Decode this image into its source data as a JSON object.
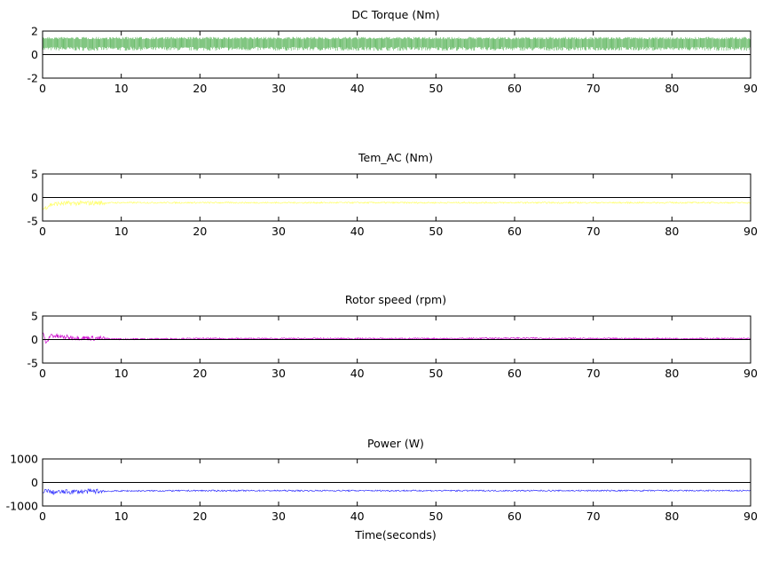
{
  "chart_data": [
    {
      "type": "line",
      "title": "DC Torque (Nm)",
      "xlabel": "",
      "ylabel": "",
      "xlim": [
        0,
        90
      ],
      "ylim": [
        -2,
        2
      ],
      "xticks": [
        "0",
        "10",
        "20",
        "30",
        "40",
        "50",
        "60",
        "70",
        "80",
        "90"
      ],
      "yticks": [
        "2",
        "0",
        "-2"
      ],
      "ytick_values": [
        2,
        0,
        -2
      ],
      "grid": true,
      "series": [
        {
          "color": "#2ca02c",
          "style": "dense-oscillation",
          "x": [
            0,
            10,
            20,
            30,
            40,
            50,
            60,
            70,
            80,
            90
          ],
          "y_min": [
            0.2,
            0.2,
            0.2,
            0.2,
            0.2,
            0.2,
            0.2,
            0.2,
            0.2,
            0.2
          ],
          "y_max": [
            1.5,
            1.5,
            1.5,
            1.5,
            1.5,
            1.5,
            1.5,
            1.5,
            1.5,
            1.5
          ]
        }
      ]
    },
    {
      "type": "line",
      "title": "Tem_AC (Nm)",
      "xlabel": "",
      "ylabel": "",
      "xlim": [
        0,
        90
      ],
      "ylim": [
        -5,
        5
      ],
      "xticks": [
        "0",
        "10",
        "20",
        "30",
        "40",
        "50",
        "60",
        "70",
        "80",
        "90"
      ],
      "yticks": [
        "5",
        "0",
        "-5"
      ],
      "ytick_values": [
        5,
        0,
        -5
      ],
      "grid": true,
      "series": [
        {
          "color": "#ffff66",
          "style": "noisy-line",
          "x": [
            0,
            1,
            2,
            5,
            10,
            20,
            30,
            40,
            50,
            60,
            70,
            80,
            90
          ],
          "y": [
            -2.5,
            -1.5,
            -1.3,
            -1.2,
            -1.1,
            -1.1,
            -1.1,
            -1.1,
            -1.1,
            -1.1,
            -1.1,
            -1.1,
            -1.1
          ]
        }
      ]
    },
    {
      "type": "line",
      "title": "Rotor speed (rpm)",
      "xlabel": "",
      "ylabel": "",
      "xlim": [
        0,
        90
      ],
      "ylim": [
        -5,
        5
      ],
      "xticks": [
        "0",
        "10",
        "20",
        "30",
        "40",
        "50",
        "60",
        "70",
        "80",
        "90"
      ],
      "yticks": [
        "5",
        "0",
        "-5"
      ],
      "ytick_values": [
        5,
        0,
        -5
      ],
      "grid": true,
      "series": [
        {
          "color": "#cc00cc",
          "style": "noisy-line",
          "x": [
            0,
            0.5,
            1,
            2,
            4,
            6,
            8,
            10,
            20,
            30,
            40,
            50,
            60,
            70,
            80,
            90
          ],
          "y": [
            1.5,
            -1.0,
            1.0,
            0.6,
            0.4,
            0.3,
            0.2,
            0.1,
            0.2,
            0.2,
            0.2,
            0.2,
            0.3,
            0.2,
            0.2,
            0.2
          ]
        }
      ]
    },
    {
      "type": "line",
      "title": "Power (W)",
      "xlabel": "Time(seconds)",
      "ylabel": "",
      "xlim": [
        0,
        90
      ],
      "ylim": [
        -1000,
        1000
      ],
      "xticks": [
        "0",
        "10",
        "20",
        "30",
        "40",
        "50",
        "60",
        "70",
        "80",
        "90"
      ],
      "yticks": [
        "1000",
        "0",
        "-1000"
      ],
      "ytick_values": [
        1000,
        0,
        -1000
      ],
      "grid": true,
      "series": [
        {
          "color": "#3333ff",
          "style": "noisy-line",
          "x": [
            0,
            0.5,
            1,
            3,
            6,
            10,
            20,
            30,
            40,
            50,
            60,
            70,
            80,
            90
          ],
          "y": [
            -500,
            -300,
            -420,
            -400,
            -380,
            -360,
            -350,
            -350,
            -350,
            -350,
            -350,
            -350,
            -350,
            -350
          ]
        }
      ]
    }
  ]
}
